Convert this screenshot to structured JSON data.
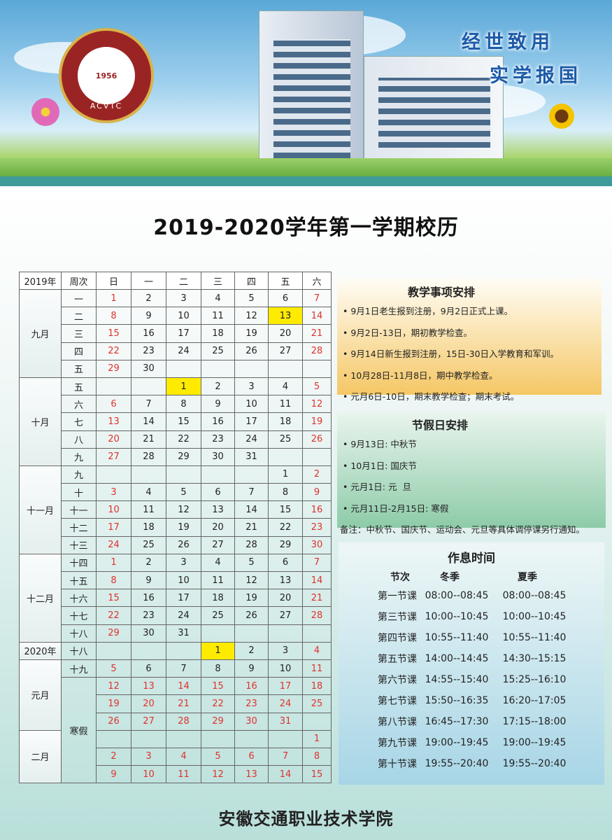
{
  "banner": {
    "logo_text": "安徽交通职业技术学院",
    "logo_abbr": "ACVTC",
    "logo_year": "1956",
    "motto_line1": "经世致用",
    "motto_line2": "实学报国"
  },
  "title": "2019-2020学年第一学期校历",
  "calendar": {
    "headers": [
      "2019年",
      "周次",
      "日",
      "一",
      "二",
      "三",
      "四",
      "五",
      "六"
    ],
    "groups": [
      {
        "label": "九月",
        "rows": [
          {
            "week": "一",
            "days": [
              "1",
              "2",
              "3",
              "4",
              "5",
              "6",
              "7"
            ]
          },
          {
            "week": "二",
            "days": [
              "8",
              "9",
              "10",
              "11",
              "12",
              "13",
              "14"
            ],
            "highlight": 5
          },
          {
            "week": "三",
            "days": [
              "15",
              "16",
              "17",
              "18",
              "19",
              "20",
              "21"
            ]
          },
          {
            "week": "四",
            "days": [
              "22",
              "23",
              "24",
              "25",
              "26",
              "27",
              "28"
            ]
          },
          {
            "week": "五",
            "days": [
              "29",
              "30",
              "",
              "",
              "",
              "",
              ""
            ]
          }
        ]
      },
      {
        "label": "十月",
        "rows": [
          {
            "week": "五",
            "days": [
              "",
              "",
              "1",
              "2",
              "3",
              "4",
              "5"
            ],
            "highlight": 2
          },
          {
            "week": "六",
            "days": [
              "6",
              "7",
              "8",
              "9",
              "10",
              "11",
              "12"
            ]
          },
          {
            "week": "七",
            "days": [
              "13",
              "14",
              "15",
              "16",
              "17",
              "18",
              "19"
            ]
          },
          {
            "week": "八",
            "days": [
              "20",
              "21",
              "22",
              "23",
              "24",
              "25",
              "26"
            ]
          },
          {
            "week": "九",
            "days": [
              "27",
              "28",
              "29",
              "30",
              "31",
              "",
              ""
            ]
          }
        ]
      },
      {
        "label": "十一月",
        "rows": [
          {
            "week": "九",
            "days": [
              "",
              "",
              "",
              "",
              "",
              "1",
              "2"
            ]
          },
          {
            "week": "十",
            "days": [
              "3",
              "4",
              "5",
              "6",
              "7",
              "8",
              "9"
            ]
          },
          {
            "week": "十一",
            "days": [
              "10",
              "11",
              "12",
              "13",
              "14",
              "15",
              "16"
            ]
          },
          {
            "week": "十二",
            "days": [
              "17",
              "18",
              "19",
              "20",
              "21",
              "22",
              "23"
            ]
          },
          {
            "week": "十三",
            "days": [
              "24",
              "25",
              "26",
              "27",
              "28",
              "29",
              "30"
            ]
          }
        ]
      },
      {
        "label": "十二月",
        "rows": [
          {
            "week": "十四",
            "days": [
              "1",
              "2",
              "3",
              "4",
              "5",
              "6",
              "7"
            ]
          },
          {
            "week": "十五",
            "days": [
              "8",
              "9",
              "10",
              "11",
              "12",
              "13",
              "14"
            ]
          },
          {
            "week": "十六",
            "days": [
              "15",
              "16",
              "17",
              "18",
              "19",
              "20",
              "21"
            ]
          },
          {
            "week": "十七",
            "days": [
              "22",
              "23",
              "24",
              "25",
              "26",
              "27",
              "28"
            ]
          },
          {
            "week": "十八",
            "days": [
              "29",
              "30",
              "31",
              "",
              "",
              "",
              ""
            ]
          }
        ]
      },
      {
        "label": "2020年",
        "rows": [
          {
            "week": "十八",
            "days": [
              "",
              "",
              "",
              "1",
              "2",
              "3",
              "4"
            ],
            "highlight": 3
          }
        ]
      },
      {
        "label": "元月",
        "rows": [
          {
            "week": "十九",
            "days": [
              "5",
              "6",
              "7",
              "8",
              "9",
              "10",
              "11"
            ]
          },
          {
            "week": "寒假",
            "holiday": true,
            "days": [
              "12",
              "13",
              "14",
              "15",
              "16",
              "17",
              "18"
            ]
          },
          {
            "holiday": true,
            "days": [
              "19",
              "20",
              "21",
              "22",
              "23",
              "24",
              "25"
            ]
          },
          {
            "holiday": true,
            "days": [
              "26",
              "27",
              "28",
              "29",
              "30",
              "31",
              ""
            ]
          }
        ]
      },
      {
        "label": "二月",
        "rows": [
          {
            "holiday": true,
            "days": [
              "",
              "",
              "",
              "",
              "",
              "",
              "1"
            ]
          },
          {
            "holiday": true,
            "days": [
              "2",
              "3",
              "4",
              "5",
              "6",
              "7",
              "8"
            ]
          },
          {
            "holiday": true,
            "days": [
              "9",
              "10",
              "11",
              "12",
              "13",
              "14",
              "15"
            ]
          }
        ]
      }
    ]
  },
  "teaching": {
    "title": "教学事项安排",
    "items": [
      "9月1日老生报到注册，9月2日正式上课。",
      "9月2日-13日，期初教学检查。",
      "9月14日新生报到注册，15日-30日入学教育和军训。",
      "10月28日-11月8日，期中教学检查。",
      "元月6日-10日，期末教学检查；期末考试。"
    ]
  },
  "holidays": {
    "title": "节假日安排",
    "items": [
      "9月13日: 中秋节",
      "10月1日: 国庆节",
      "元月1日: 元  旦",
      "元月11日-2月15日: 寒假"
    ],
    "note": "备注：中秋节、国庆节、运动会、元旦等具体调停课另行通知。"
  },
  "schedule": {
    "title": "作息时间",
    "headers": [
      "节次",
      "冬季",
      "夏季"
    ],
    "rows": [
      [
        "第一节课",
        "08:00--08:45",
        "08:00--08:45"
      ],
      [
        "第三节课",
        "10:00--10:45",
        "10:00--10:45"
      ],
      [
        "第四节课",
        "10:55--11:40",
        "10:55--11:40"
      ],
      [
        "第五节课",
        "14:00--14:45",
        "14:30--15:15"
      ],
      [
        "第六节课",
        "14:55--15:40",
        "15:25--16:10"
      ],
      [
        "第七节课",
        "15:50--16:35",
        "16:20--17:05"
      ],
      [
        "第八节课",
        "16:45--17:30",
        "17:15--18:00"
      ],
      [
        "第九节课",
        "19:00--19:45",
        "19:00--19:45"
      ],
      [
        "第十节课",
        "19:55--20:40",
        "19:55--20:40"
      ]
    ]
  },
  "footer": "安徽交通职业技术学院",
  "colors": {
    "weekend": "#e0312e",
    "highlight": "#ffeb00",
    "teal_strip": "#3f9a9a"
  }
}
